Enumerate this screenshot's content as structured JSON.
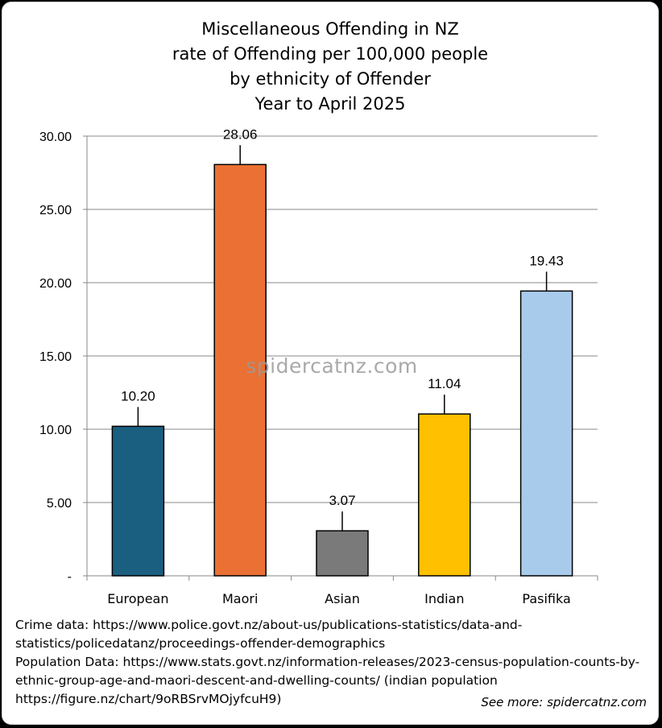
{
  "chart_data": {
    "type": "bar",
    "title_lines": [
      "Miscellaneous Offending in NZ",
      "rate of Offending per 100,000 people",
      "by ethnicity of Offender",
      "Year to April 2025"
    ],
    "categories": [
      "European",
      "Maori",
      "Asian",
      "Indian",
      "Pasifika"
    ],
    "values": [
      10.2,
      28.06,
      3.07,
      11.04,
      19.43
    ],
    "data_labels": [
      "10.20",
      "28.06",
      "3.07",
      "11.04",
      "19.43"
    ],
    "bar_colors": [
      "#1a5e80",
      "#ea7033",
      "#7a7a7a",
      "#ffc000",
      "#a9cbeb"
    ],
    "yticks": [
      "-",
      "5.00",
      "10.00",
      "15.00",
      "20.00",
      "25.00",
      "30.00"
    ],
    "ylim": [
      0,
      30
    ],
    "grid": true,
    "legend": "none",
    "watermark": "spidercatnz.com"
  },
  "footnotes": [
    "Crime data: https://www.police.govt.nz/about-us/publications-statistics/data-and-",
    "statistics/policedatanz/proceedings-offender-demographics",
    "Population Data: https://www.stats.govt.nz/information-releases/2023-census-population-counts-by-",
    "ethnic-group-age-and-maori-descent-and-dwelling-counts/ (indian population",
    "https://figure.nz/chart/9oRBSrvMOjyfcuH9)"
  ],
  "see_more": "See more: spidercatnz.com"
}
